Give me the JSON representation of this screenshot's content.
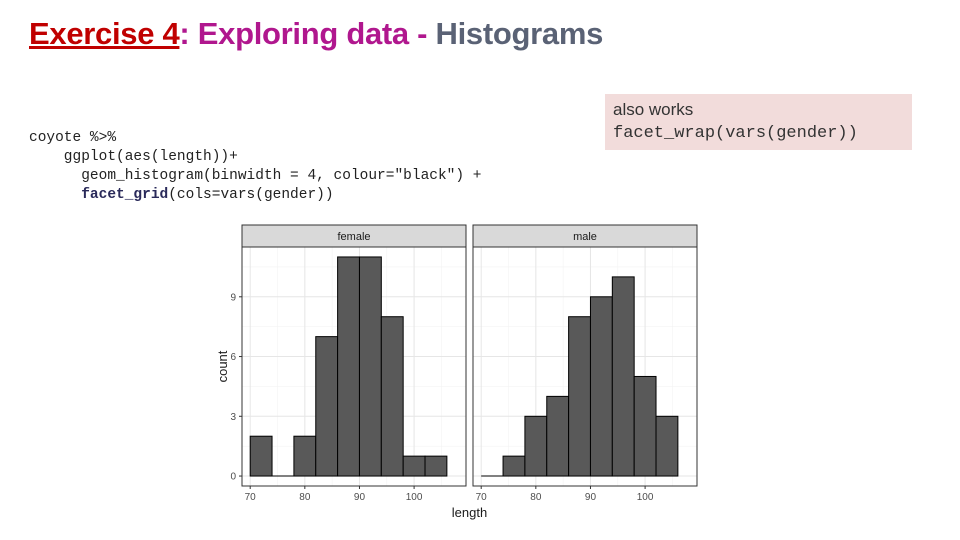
{
  "slide": {
    "title": {
      "part1": "Exercise 4",
      "sep": ": ",
      "part2": "Exploring data - ",
      "part3": "Histograms",
      "colors": {
        "part1": "#c00000",
        "part2": "#b0178e",
        "part3": "#5a6275"
      }
    },
    "code": {
      "line1": "coyote %>%",
      "line2": "    ggplot(aes(length))+",
      "line3": "      geom_histogram(binwidth = 4, colour=\"black\") +",
      "line4_kw": "facet_grid",
      "line4_rest": "(cols=vars(gender))",
      "line4_indent": "      "
    },
    "note": {
      "line1": "also works",
      "line2": "facet_wrap(vars(gender))",
      "background": "#f2dcdb"
    }
  },
  "chart_data": {
    "type": "bar",
    "subtype": "histogram-facets",
    "xlabel": "length",
    "ylabel": "count",
    "binwidth": 4,
    "bar_fill": "#595959",
    "bar_outline": "#000000",
    "panel_background": "#ffffff",
    "strip_background": "#d9d9d9",
    "grid": true,
    "xlim": [
      68.5,
      109.5
    ],
    "ylim": [
      -0.5,
      11.5
    ],
    "x_ticks": [
      70,
      80,
      90,
      100
    ],
    "y_ticks": [
      0,
      3,
      6,
      9
    ],
    "facets": [
      {
        "label": "female",
        "bins": [
          {
            "x": 72,
            "count": 2
          },
          {
            "x": 76,
            "count": 0
          },
          {
            "x": 80,
            "count": 2
          },
          {
            "x": 84,
            "count": 7
          },
          {
            "x": 88,
            "count": 11
          },
          {
            "x": 92,
            "count": 11
          },
          {
            "x": 96,
            "count": 8
          },
          {
            "x": 100,
            "count": 1
          },
          {
            "x": 104,
            "count": 1
          }
        ]
      },
      {
        "label": "male",
        "bins": [
          {
            "x": 72,
            "count": 0
          },
          {
            "x": 76,
            "count": 1
          },
          {
            "x": 80,
            "count": 3
          },
          {
            "x": 84,
            "count": 4
          },
          {
            "x": 88,
            "count": 8
          },
          {
            "x": 92,
            "count": 9
          },
          {
            "x": 96,
            "count": 10
          },
          {
            "x": 100,
            "count": 5
          },
          {
            "x": 104,
            "count": 3
          }
        ]
      }
    ]
  }
}
